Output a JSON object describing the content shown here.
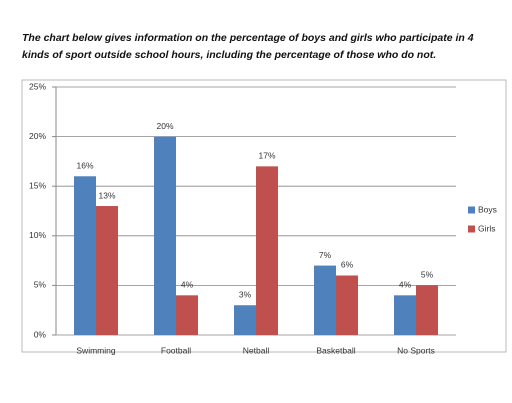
{
  "chart_data": {
    "type": "bar",
    "title": "The chart below gives information on the percentage of boys and girls who participate in 4 kinds of sport outside school hours, including the percentage of those who do not.",
    "categories": [
      "Swimming",
      "Football",
      "Netball",
      "Basketball",
      "No Sports"
    ],
    "series": [
      {
        "name": "Boys",
        "color": "#4f81bd",
        "values": [
          16,
          20,
          3,
          7,
          4
        ],
        "value_labels": [
          "16%",
          "20%",
          "3%",
          "7%",
          "4%"
        ]
      },
      {
        "name": "Girls",
        "color": "#c0504d",
        "values": [
          13,
          4,
          17,
          6,
          5
        ],
        "value_labels": [
          "13%",
          "4%",
          "17%",
          "6%",
          "5%"
        ]
      }
    ],
    "ylim": [
      0,
      25
    ],
    "yticks": [
      {
        "value": 0,
        "label": "0%"
      },
      {
        "value": 5,
        "label": "5%"
      },
      {
        "value": 10,
        "label": "10%"
      },
      {
        "value": 15,
        "label": "15%"
      },
      {
        "value": 20,
        "label": "20%"
      },
      {
        "value": 25,
        "label": "25%"
      }
    ],
    "grid": true,
    "legend": "right"
  }
}
